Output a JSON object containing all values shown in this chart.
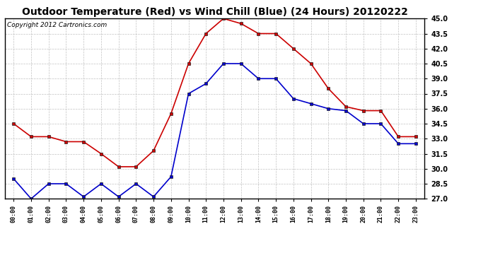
{
  "title": "Outdoor Temperature (Red) vs Wind Chill (Blue) (24 Hours) 20120222",
  "copyright": "Copyright 2012 Cartronics.com",
  "hours": [
    "00:00",
    "01:00",
    "02:00",
    "03:00",
    "04:00",
    "05:00",
    "06:00",
    "07:00",
    "08:00",
    "09:00",
    "10:00",
    "11:00",
    "12:00",
    "13:00",
    "14:00",
    "15:00",
    "16:00",
    "17:00",
    "18:00",
    "19:00",
    "20:00",
    "21:00",
    "22:00",
    "23:00"
  ],
  "red_temp": [
    34.5,
    33.2,
    33.2,
    32.7,
    32.7,
    31.5,
    30.2,
    30.2,
    31.8,
    35.5,
    40.5,
    43.5,
    45.0,
    44.5,
    43.5,
    43.5,
    42.0,
    40.5,
    38.0,
    36.2,
    35.8,
    35.8,
    33.2,
    33.2
  ],
  "blue_wc": [
    29.0,
    27.0,
    28.5,
    28.5,
    27.2,
    28.5,
    27.2,
    28.5,
    27.2,
    29.2,
    37.5,
    38.5,
    40.5,
    40.5,
    39.0,
    39.0,
    37.0,
    36.5,
    36.0,
    35.8,
    34.5,
    34.5,
    32.5,
    32.5
  ],
  "ylim": [
    27.0,
    45.0
  ],
  "yticks": [
    27.0,
    28.5,
    30.0,
    31.5,
    33.0,
    34.5,
    36.0,
    37.5,
    39.0,
    40.5,
    42.0,
    43.5,
    45.0
  ],
  "bg_color": "#ffffff",
  "plot_bg": "#ffffff",
  "grid_color": "#bbbbbb",
  "red_color": "#cc0000",
  "blue_color": "#0000cc",
  "title_fontsize": 10,
  "copyright_fontsize": 6.5
}
